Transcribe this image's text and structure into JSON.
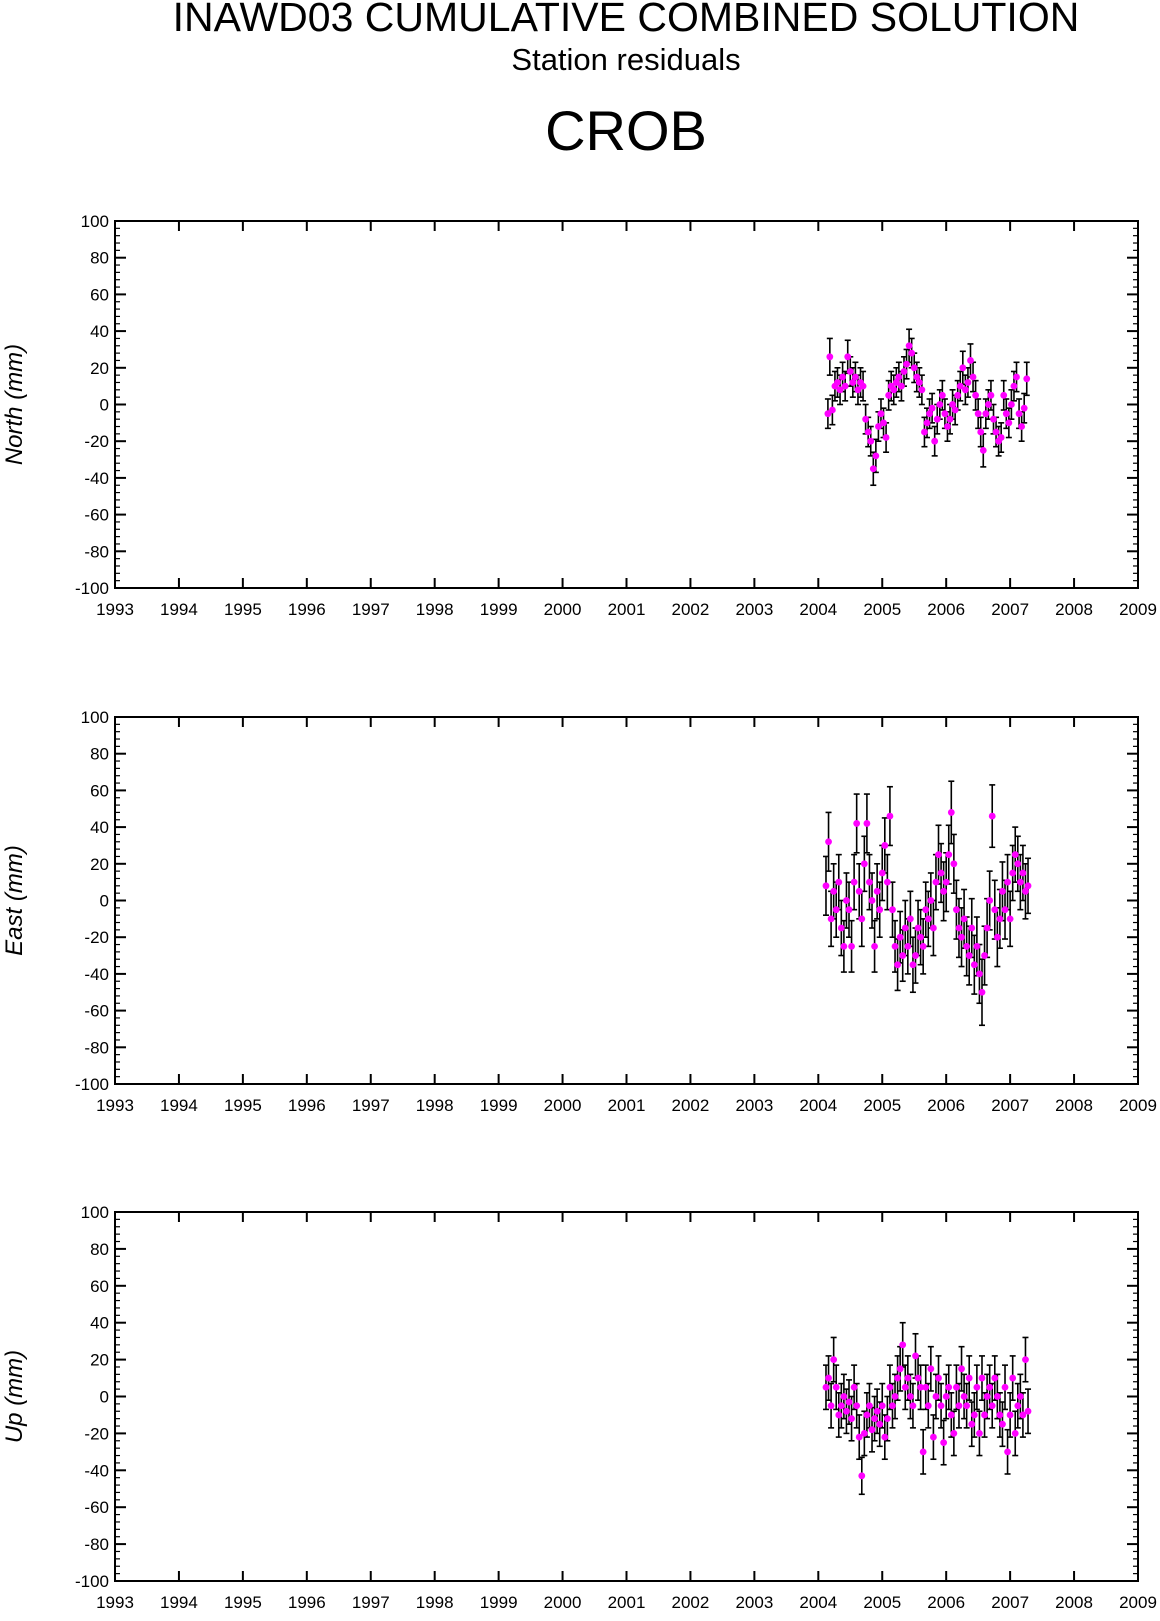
{
  "header": {
    "title": "INAWD03 CUMULATIVE COMBINED SOLUTION",
    "subtitle": "Station residuals",
    "station": "CROB"
  },
  "colors": {
    "point": "#ff00ff",
    "errorbar": "#000000",
    "axis": "#000000"
  },
  "chart_data": [
    {
      "type": "scatter",
      "name": "north",
      "ylabel": "North (mm)",
      "xlim": [
        1993,
        2009
      ],
      "ylim": [
        -100,
        100
      ],
      "xticks": [
        "1993",
        "1994",
        "1995",
        "1996",
        "1997",
        "1998",
        "1999",
        "2000",
        "2001",
        "2002",
        "2003",
        "2004",
        "2005",
        "2006",
        "2007",
        "2008",
        "2009"
      ],
      "yticks": [
        "100",
        "80",
        "60",
        "40",
        "20",
        "0",
        "-20",
        "-40",
        "-60",
        "-80",
        "-100"
      ],
      "grid": false,
      "points": [
        [
          2004.15,
          -5,
          8
        ],
        [
          2004.18,
          26,
          10
        ],
        [
          2004.22,
          -3,
          8
        ],
        [
          2004.26,
          10,
          8
        ],
        [
          2004.3,
          12,
          8
        ],
        [
          2004.34,
          8,
          8
        ],
        [
          2004.38,
          15,
          8
        ],
        [
          2004.42,
          10,
          8
        ],
        [
          2004.46,
          26,
          9
        ],
        [
          2004.5,
          18,
          8
        ],
        [
          2004.54,
          12,
          8
        ],
        [
          2004.58,
          15,
          8
        ],
        [
          2004.62,
          8,
          8
        ],
        [
          2004.66,
          12,
          8
        ],
        [
          2004.7,
          10,
          8
        ],
        [
          2004.74,
          -8,
          8
        ],
        [
          2004.78,
          -15,
          8
        ],
        [
          2004.82,
          -20,
          8
        ],
        [
          2004.86,
          -35,
          9
        ],
        [
          2004.9,
          -28,
          9
        ],
        [
          2004.94,
          -12,
          8
        ],
        [
          2004.98,
          -5,
          8
        ],
        [
          2005.02,
          -10,
          8
        ],
        [
          2005.06,
          -18,
          8
        ],
        [
          2005.1,
          5,
          8
        ],
        [
          2005.14,
          10,
          8
        ],
        [
          2005.18,
          8,
          8
        ],
        [
          2005.22,
          12,
          8
        ],
        [
          2005.26,
          15,
          8
        ],
        [
          2005.3,
          10,
          8
        ],
        [
          2005.34,
          18,
          8
        ],
        [
          2005.38,
          22,
          8
        ],
        [
          2005.42,
          32,
          9
        ],
        [
          2005.46,
          28,
          8
        ],
        [
          2005.5,
          20,
          8
        ],
        [
          2005.54,
          15,
          8
        ],
        [
          2005.58,
          12,
          8
        ],
        [
          2005.62,
          8,
          8
        ],
        [
          2005.66,
          -15,
          8
        ],
        [
          2005.7,
          -10,
          8
        ],
        [
          2005.74,
          -5,
          8
        ],
        [
          2005.78,
          -2,
          8
        ],
        [
          2005.82,
          -20,
          8
        ],
        [
          2005.86,
          -8,
          8
        ],
        [
          2005.9,
          0,
          8
        ],
        [
          2005.94,
          5,
          8
        ],
        [
          2005.98,
          -5,
          8
        ],
        [
          2006.02,
          -12,
          8
        ],
        [
          2006.06,
          -8,
          8
        ],
        [
          2006.1,
          0,
          8
        ],
        [
          2006.14,
          -3,
          8
        ],
        [
          2006.18,
          5,
          8
        ],
        [
          2006.22,
          10,
          8
        ],
        [
          2006.26,
          20,
          9
        ],
        [
          2006.3,
          8,
          8
        ],
        [
          2006.34,
          12,
          8
        ],
        [
          2006.38,
          24,
          9
        ],
        [
          2006.42,
          15,
          8
        ],
        [
          2006.46,
          5,
          8
        ],
        [
          2006.5,
          -5,
          8
        ],
        [
          2006.54,
          -15,
          8
        ],
        [
          2006.58,
          -25,
          9
        ],
        [
          2006.62,
          -5,
          8
        ],
        [
          2006.66,
          0,
          8
        ],
        [
          2006.7,
          5,
          8
        ],
        [
          2006.74,
          -8,
          8
        ],
        [
          2006.78,
          -15,
          8
        ],
        [
          2006.82,
          -20,
          8
        ],
        [
          2006.86,
          -18,
          8
        ],
        [
          2006.9,
          5,
          8
        ],
        [
          2006.94,
          -5,
          8
        ],
        [
          2006.98,
          -10,
          8
        ],
        [
          2007.02,
          0,
          8
        ],
        [
          2007.06,
          10,
          8
        ],
        [
          2007.1,
          15,
          8
        ],
        [
          2007.14,
          -5,
          8
        ],
        [
          2007.18,
          -12,
          8
        ],
        [
          2007.22,
          -2,
          8
        ],
        [
          2007.26,
          14,
          9
        ]
      ]
    },
    {
      "type": "scatter",
      "name": "east",
      "ylabel": "East (mm)",
      "xlim": [
        1993,
        2009
      ],
      "ylim": [
        -100,
        100
      ],
      "xticks": [
        "1993",
        "1994",
        "1995",
        "1996",
        "1997",
        "1998",
        "1999",
        "2000",
        "2001",
        "2002",
        "2003",
        "2004",
        "2005",
        "2006",
        "2007",
        "2008",
        "2009"
      ],
      "yticks": [
        "100",
        "80",
        "60",
        "40",
        "20",
        "0",
        "-20",
        "-40",
        "-60",
        "-80",
        "-100"
      ],
      "grid": false,
      "points": [
        [
          2004.12,
          8,
          16
        ],
        [
          2004.16,
          32,
          16
        ],
        [
          2004.2,
          -10,
          15
        ],
        [
          2004.24,
          5,
          15
        ],
        [
          2004.28,
          -5,
          15
        ],
        [
          2004.32,
          10,
          15
        ],
        [
          2004.36,
          -15,
          15
        ],
        [
          2004.4,
          -25,
          14
        ],
        [
          2004.44,
          0,
          15
        ],
        [
          2004.48,
          -5,
          15
        ],
        [
          2004.52,
          -25,
          14
        ],
        [
          2004.56,
          10,
          15
        ],
        [
          2004.6,
          42,
          16
        ],
        [
          2004.64,
          5,
          15
        ],
        [
          2004.68,
          -10,
          15
        ],
        [
          2004.72,
          20,
          15
        ],
        [
          2004.76,
          42,
          16
        ],
        [
          2004.8,
          10,
          15
        ],
        [
          2004.84,
          0,
          15
        ],
        [
          2004.88,
          -25,
          14
        ],
        [
          2004.92,
          5,
          15
        ],
        [
          2004.96,
          -5,
          15
        ],
        [
          2005.0,
          15,
          15
        ],
        [
          2005.04,
          30,
          15
        ],
        [
          2005.08,
          10,
          15
        ],
        [
          2005.12,
          46,
          16
        ],
        [
          2005.16,
          -5,
          15
        ],
        [
          2005.2,
          -25,
          14
        ],
        [
          2005.24,
          -35,
          14
        ],
        [
          2005.28,
          -20,
          14
        ],
        [
          2005.32,
          -30,
          14
        ],
        [
          2005.36,
          -15,
          15
        ],
        [
          2005.4,
          -25,
          15
        ],
        [
          2005.44,
          -10,
          15
        ],
        [
          2005.48,
          -35,
          15
        ],
        [
          2005.52,
          -30,
          15
        ],
        [
          2005.56,
          -15,
          15
        ],
        [
          2005.6,
          -20,
          15
        ],
        [
          2005.64,
          -25,
          15
        ],
        [
          2005.68,
          -5,
          15
        ],
        [
          2005.72,
          -10,
          15
        ],
        [
          2005.76,
          0,
          15
        ],
        [
          2005.8,
          -15,
          15
        ],
        [
          2005.84,
          10,
          15
        ],
        [
          2005.88,
          25,
          16
        ],
        [
          2005.92,
          15,
          16
        ],
        [
          2005.96,
          5,
          16
        ],
        [
          2006.0,
          10,
          16
        ],
        [
          2006.04,
          25,
          16
        ],
        [
          2006.08,
          48,
          17
        ],
        [
          2006.12,
          20,
          16
        ],
        [
          2006.16,
          -5,
          16
        ],
        [
          2006.2,
          -15,
          16
        ],
        [
          2006.24,
          -20,
          16
        ],
        [
          2006.28,
          -10,
          16
        ],
        [
          2006.32,
          -25,
          16
        ],
        [
          2006.36,
          -30,
          16
        ],
        [
          2006.4,
          -15,
          16
        ],
        [
          2006.44,
          -35,
          16
        ],
        [
          2006.48,
          -25,
          16
        ],
        [
          2006.52,
          -40,
          16
        ],
        [
          2006.56,
          -50,
          18
        ],
        [
          2006.6,
          -30,
          16
        ],
        [
          2006.64,
          -15,
          16
        ],
        [
          2006.68,
          0,
          16
        ],
        [
          2006.72,
          46,
          17
        ],
        [
          2006.76,
          -5,
          16
        ],
        [
          2006.8,
          -20,
          16
        ],
        [
          2006.84,
          -10,
          16
        ],
        [
          2006.88,
          5,
          16
        ],
        [
          2006.92,
          -5,
          16
        ],
        [
          2006.96,
          10,
          15
        ],
        [
          2007.0,
          -10,
          15
        ],
        [
          2007.04,
          15,
          15
        ],
        [
          2007.08,
          25,
          15
        ],
        [
          2007.12,
          20,
          15
        ],
        [
          2007.16,
          10,
          15
        ],
        [
          2007.2,
          15,
          15
        ],
        [
          2007.24,
          5,
          15
        ],
        [
          2007.28,
          8,
          15
        ]
      ]
    },
    {
      "type": "scatter",
      "name": "up",
      "ylabel": "Up (mm)",
      "xlim": [
        1993,
        2009
      ],
      "ylim": [
        -100,
        100
      ],
      "xticks": [
        "1993",
        "1994",
        "1995",
        "1996",
        "1997",
        "1998",
        "1999",
        "2000",
        "2001",
        "2002",
        "2003",
        "2004",
        "2005",
        "2006",
        "2007",
        "2008",
        "2009"
      ],
      "yticks": [
        "100",
        "80",
        "60",
        "40",
        "20",
        "0",
        "-20",
        "-40",
        "-60",
        "-80",
        "-100"
      ],
      "grid": false,
      "points": [
        [
          2004.12,
          5,
          12
        ],
        [
          2004.16,
          10,
          12
        ],
        [
          2004.2,
          -5,
          12
        ],
        [
          2004.24,
          20,
          12
        ],
        [
          2004.28,
          5,
          12
        ],
        [
          2004.32,
          -10,
          12
        ],
        [
          2004.36,
          -5,
          12
        ],
        [
          2004.4,
          0,
          12
        ],
        [
          2004.44,
          -8,
          12
        ],
        [
          2004.48,
          -3,
          12
        ],
        [
          2004.52,
          -12,
          12
        ],
        [
          2004.56,
          5,
          12
        ],
        [
          2004.6,
          -5,
          12
        ],
        [
          2004.64,
          -22,
          12
        ],
        [
          2004.68,
          -43,
          10
        ],
        [
          2004.72,
          -20,
          12
        ],
        [
          2004.76,
          -10,
          12
        ],
        [
          2004.8,
          -5,
          12
        ],
        [
          2004.84,
          -18,
          12
        ],
        [
          2004.88,
          -12,
          12
        ],
        [
          2004.92,
          -8,
          12
        ],
        [
          2004.96,
          -15,
          12
        ],
        [
          2005.0,
          -5,
          12
        ],
        [
          2005.04,
          -22,
          12
        ],
        [
          2005.08,
          -12,
          12
        ],
        [
          2005.12,
          5,
          12
        ],
        [
          2005.16,
          -5,
          12
        ],
        [
          2005.2,
          0,
          12
        ],
        [
          2005.24,
          10,
          12
        ],
        [
          2005.28,
          15,
          12
        ],
        [
          2005.32,
          28,
          12
        ],
        [
          2005.36,
          5,
          12
        ],
        [
          2005.4,
          10,
          12
        ],
        [
          2005.44,
          0,
          12
        ],
        [
          2005.48,
          -5,
          12
        ],
        [
          2005.52,
          22,
          12
        ],
        [
          2005.56,
          10,
          12
        ],
        [
          2005.6,
          5,
          12
        ],
        [
          2005.64,
          -30,
          12
        ],
        [
          2005.68,
          5,
          12
        ],
        [
          2005.72,
          -5,
          12
        ],
        [
          2005.76,
          15,
          12
        ],
        [
          2005.8,
          -22,
          12
        ],
        [
          2005.84,
          0,
          12
        ],
        [
          2005.88,
          10,
          12
        ],
        [
          2005.92,
          -5,
          12
        ],
        [
          2005.96,
          -25,
          12
        ],
        [
          2006.0,
          0,
          12
        ],
        [
          2006.04,
          5,
          12
        ],
        [
          2006.08,
          -10,
          12
        ],
        [
          2006.12,
          -20,
          12
        ],
        [
          2006.16,
          5,
          12
        ],
        [
          2006.2,
          -5,
          12
        ],
        [
          2006.24,
          15,
          12
        ],
        [
          2006.28,
          0,
          12
        ],
        [
          2006.32,
          -5,
          12
        ],
        [
          2006.36,
          10,
          12
        ],
        [
          2006.4,
          -15,
          12
        ],
        [
          2006.44,
          -10,
          12
        ],
        [
          2006.48,
          5,
          12
        ],
        [
          2006.52,
          -20,
          12
        ],
        [
          2006.56,
          10,
          12
        ],
        [
          2006.6,
          -10,
          12
        ],
        [
          2006.64,
          0,
          12
        ],
        [
          2006.68,
          5,
          12
        ],
        [
          2006.72,
          -5,
          12
        ],
        [
          2006.76,
          10,
          12
        ],
        [
          2006.8,
          0,
          12
        ],
        [
          2006.84,
          -10,
          12
        ],
        [
          2006.88,
          -15,
          12
        ],
        [
          2006.92,
          5,
          12
        ],
        [
          2006.96,
          -30,
          12
        ],
        [
          2007.0,
          -10,
          12
        ],
        [
          2007.04,
          10,
          12
        ],
        [
          2007.08,
          -20,
          12
        ],
        [
          2007.12,
          -5,
          12
        ],
        [
          2007.16,
          0,
          12
        ],
        [
          2007.2,
          -10,
          12
        ],
        [
          2007.24,
          20,
          12
        ],
        [
          2007.28,
          -8,
          12
        ]
      ]
    }
  ]
}
